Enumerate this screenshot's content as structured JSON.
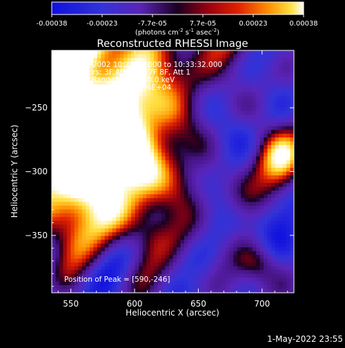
{
  "colorbar": {
    "ticks": [
      "-0.00038",
      "-0.00023",
      "-7.7e-05",
      "7.7e-05",
      "0.00023",
      "0.00038"
    ],
    "unit_parts": [
      "(photons cm",
      "-2",
      " s",
      "-1",
      " asec",
      "-2",
      ")"
    ]
  },
  "title": "Reconstructed RHESSI Image",
  "annotations": {
    "time": "22-Sep-2002 10:27:32.000 to 10:33:32.000",
    "detectors": "Detectors: 3F 4F 5F 6F 7F 8F, Att 1",
    "energy": "Energy Range: 25.0 - 50.0 keV",
    "algorithm": "Clean    Total counts: 1.56E+04",
    "peak": "Position of Peak = [590,-246]"
  },
  "footer_date": "1-May-2022 23:55",
  "chart_data": {
    "type": "heatmap",
    "title": "Reconstructed RHESSI Image",
    "xlabel": "Heliocentric X (arcsec)",
    "ylabel": "Heliocentric Y (arcsec)",
    "xlim": [
      535,
      725
    ],
    "ylim": [
      -395,
      -205
    ],
    "x_ticks": [
      550,
      600,
      650,
      700
    ],
    "y_ticks": [
      -250,
      -300,
      -350
    ],
    "x_tick_labels": [
      "550",
      "600",
      "650",
      "700"
    ],
    "y_tick_labels": [
      "−250",
      "−300",
      "−350"
    ],
    "color_range": [
      -0.00038,
      0.00038
    ],
    "colormap": "blue-purple-red-orange-yellow-white",
    "peak_position": [
      590,
      -246
    ],
    "grid": false
  }
}
